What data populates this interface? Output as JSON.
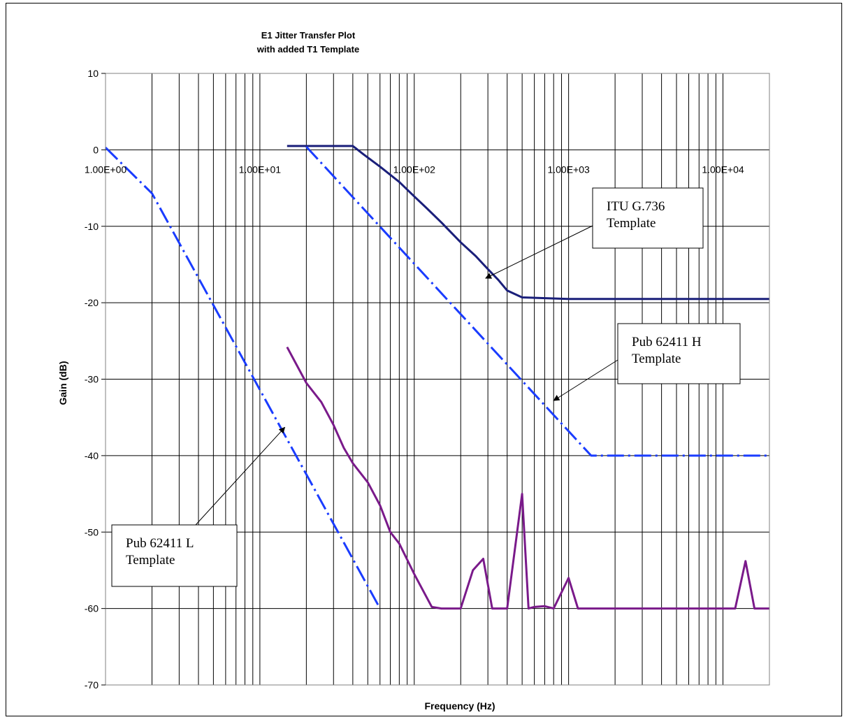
{
  "chart_data": {
    "type": "line",
    "title": "E1 Jitter Transfer Plot",
    "subtitle": "with added T1 Template",
    "xlabel": "Frequency (Hz)",
    "ylabel": "Gain (dB)",
    "xscale": "log",
    "xlim": [
      1,
      20000
    ],
    "ylim": [
      -70,
      10
    ],
    "grid": true,
    "y_ticks": [
      "10",
      "0",
      "-10",
      "-20",
      "-30",
      "-40",
      "-50",
      "-60",
      "-70"
    ],
    "x_tick_labels": [
      {
        "value": 1,
        "label": "1.00E+00"
      },
      {
        "value": 10,
        "label": "1.00E+01"
      },
      {
        "value": 100,
        "label": "1.00E+02"
      },
      {
        "value": 1000,
        "label": "1.00E+03"
      },
      {
        "value": 10000,
        "label": "1.00E+04"
      }
    ],
    "series": [
      {
        "id": "itu",
        "color": "#1a1f7a",
        "dash": "solid",
        "x": [
          15,
          40,
          47,
          60,
          80,
          100,
          120,
          150,
          200,
          250,
          300,
          350,
          400,
          500,
          1000,
          20000
        ],
        "y": [
          0.5,
          0.5,
          -0.6,
          -2.2,
          -4.2,
          -6.1,
          -7.6,
          -9.5,
          -12.1,
          -13.9,
          -15.6,
          -17.0,
          -18.4,
          -19.3,
          -19.5,
          -19.5
        ]
      },
      {
        "id": "pub_h",
        "color": "#1a3cff",
        "dash": "dashdot",
        "x": [
          20,
          1400,
          20000
        ],
        "y": [
          0.4,
          -40.0,
          -40.0
        ]
      },
      {
        "id": "pub_l",
        "color": "#1a3cff",
        "dash": "dashdot",
        "x": [
          1,
          2,
          60
        ],
        "y": [
          0.3,
          -5.7,
          -60.0
        ]
      },
      {
        "id": "measured",
        "color": "#7a1a8a",
        "dash": "solid",
        "x": [
          15,
          20,
          25,
          30,
          35,
          40,
          50,
          60,
          70,
          80,
          100,
          130,
          150,
          200,
          240,
          280,
          320,
          400,
          500,
          550,
          600,
          700,
          800,
          1000,
          1150,
          1350,
          2000,
          5000,
          12000,
          14000,
          16000,
          20000
        ],
        "y": [
          -25.8,
          -30.5,
          -33.0,
          -36.0,
          -39.0,
          -41.0,
          -43.5,
          -46.5,
          -50.0,
          -51.5,
          -55.5,
          -59.8,
          -60.0,
          -60.0,
          -55.0,
          -53.5,
          -60.0,
          -60.0,
          -45.0,
          -60.0,
          -59.8,
          -59.7,
          -60.0,
          -56.0,
          -60.0,
          -60.0,
          -60.0,
          -60.0,
          -60.0,
          -53.8,
          -60.0,
          -60.0
        ]
      }
    ],
    "annotations": [
      {
        "id": "itu_callout",
        "lines": [
          "ITU G.736",
          "Template"
        ],
        "point_x": 290,
        "point_y": -16.8
      },
      {
        "id": "pub_h_callout",
        "lines": [
          "Pub 62411 H",
          "Template"
        ],
        "point_x": 800,
        "point_y": -32.8
      },
      {
        "id": "pub_l_callout",
        "lines": [
          "Pub 62411 L",
          "Template"
        ],
        "point_x": 14.5,
        "point_y": -36.3
      }
    ]
  }
}
